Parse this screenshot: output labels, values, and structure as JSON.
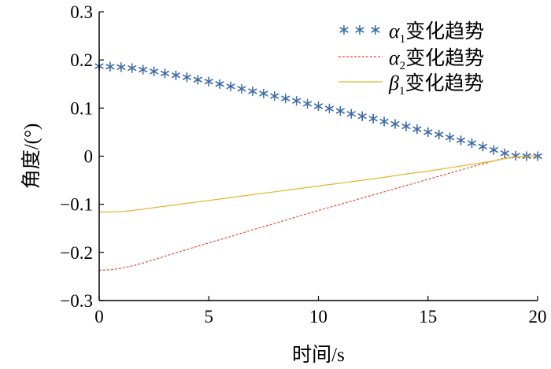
{
  "chart_data": {
    "type": "line",
    "xlabel": "时间/s",
    "ylabel": "角度/(°)",
    "xlim": [
      0,
      20
    ],
    "ylim": [
      -0.3,
      0.3
    ],
    "x_ticks": [
      "0",
      "5",
      "10",
      "15",
      "20"
    ],
    "y_ticks": [
      "−0.3",
      "−0.2",
      "−0.1",
      "0",
      "0.1",
      "0.2",
      "0.3"
    ],
    "legend_position": "top-right",
    "grid": false,
    "series": [
      {
        "name": "α1变化趋势",
        "symbol": "α",
        "sub": "1",
        "suffix": "变化趋势",
        "style": "asterisk",
        "color": "#3d6aa8",
        "x": [
          0,
          0.5,
          1,
          1.5,
          2,
          2.5,
          3,
          3.5,
          4,
          4.5,
          5,
          5.5,
          6,
          6.5,
          7,
          7.5,
          8,
          8.5,
          9,
          9.5,
          10,
          10.5,
          11,
          11.5,
          12,
          12.5,
          13,
          13.5,
          14,
          14.5,
          15,
          15.5,
          16,
          16.5,
          17,
          17.5,
          18,
          18.5,
          19,
          19.5,
          20
        ],
        "y": [
          0.187,
          0.186,
          0.185,
          0.183,
          0.18,
          0.176,
          0.172,
          0.168,
          0.164,
          0.159,
          0.155,
          0.15,
          0.145,
          0.14,
          0.135,
          0.13,
          0.125,
          0.12,
          0.115,
          0.109,
          0.104,
          0.099,
          0.094,
          0.088,
          0.083,
          0.078,
          0.072,
          0.067,
          0.062,
          0.056,
          0.05,
          0.045,
          0.039,
          0.033,
          0.027,
          0.02,
          0.013,
          0.006,
          0.001,
          0.0,
          0.0
        ]
      },
      {
        "name": "α2变化趋势",
        "symbol": "α",
        "sub": "2",
        "suffix": "变化趋势",
        "style": "dashed",
        "color": "#d9533a",
        "x": [
          0,
          0.5,
          1,
          1.5,
          2,
          3,
          4,
          5,
          6,
          7,
          8,
          9,
          10,
          11,
          12,
          13,
          14,
          15,
          16,
          17,
          18,
          18.5,
          19,
          19.5,
          20
        ],
        "y": [
          -0.237,
          -0.236,
          -0.233,
          -0.228,
          -0.222,
          -0.208,
          -0.194,
          -0.18,
          -0.167,
          -0.153,
          -0.14,
          -0.126,
          -0.113,
          -0.1,
          -0.087,
          -0.074,
          -0.061,
          -0.048,
          -0.035,
          -0.022,
          -0.01,
          -0.004,
          -0.001,
          0.0,
          0.0
        ]
      },
      {
        "name": "β1变化趋势",
        "symbol": "β",
        "sub": "1",
        "suffix": "变化趋势",
        "style": "solid",
        "color": "#e6b428",
        "x": [
          0,
          0.5,
          1,
          1.5,
          2,
          3,
          4,
          5,
          6,
          7,
          8,
          9,
          10,
          11,
          12,
          13,
          14,
          15,
          16,
          17,
          18,
          18.5,
          19,
          19.5,
          20
        ],
        "y": [
          -0.116,
          -0.116,
          -0.115,
          -0.113,
          -0.11,
          -0.104,
          -0.098,
          -0.092,
          -0.086,
          -0.08,
          -0.074,
          -0.068,
          -0.062,
          -0.056,
          -0.05,
          -0.044,
          -0.037,
          -0.031,
          -0.024,
          -0.017,
          -0.01,
          -0.005,
          -0.002,
          0.0,
          0.0
        ]
      }
    ]
  }
}
